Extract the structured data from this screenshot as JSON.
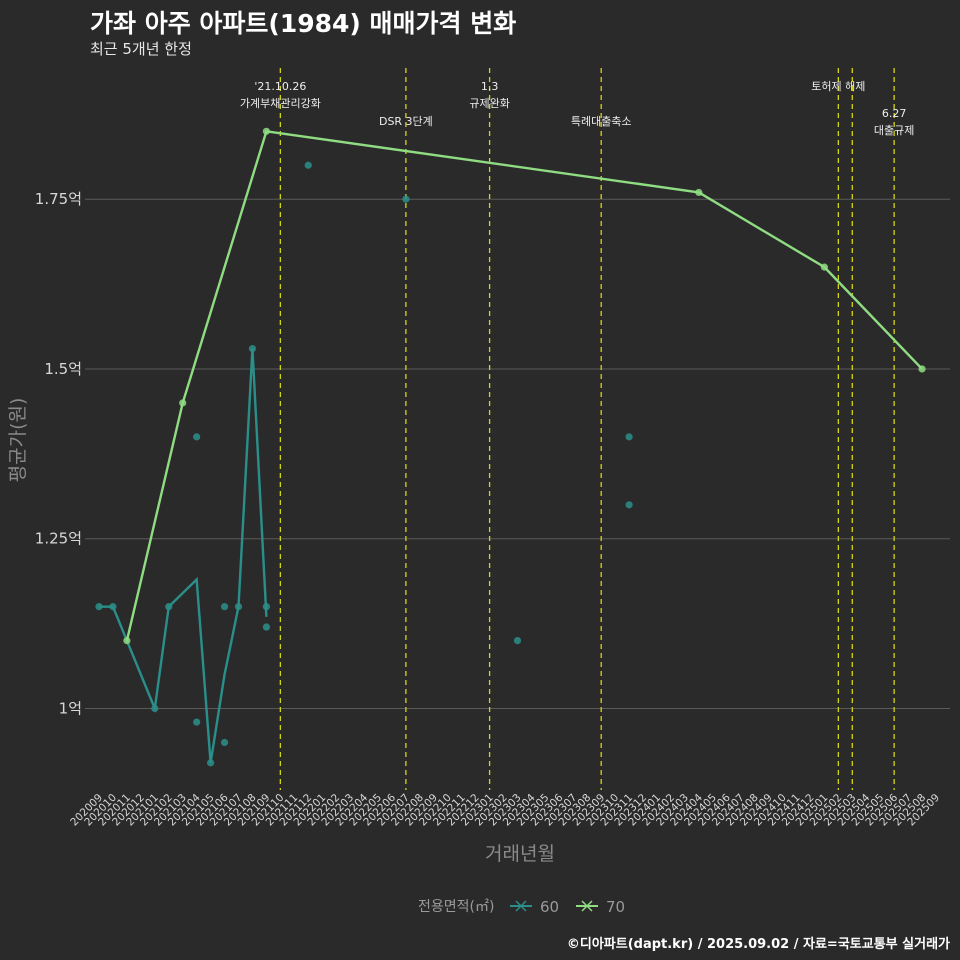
{
  "header": {
    "title": "가좌 아주 아파트(1984) 매매가격 변화",
    "subtitle": "최근 5개년 한정"
  },
  "caption": "©디아파트(dapt.kr) / 2025.09.02 / 자료=국토교통부 실거래가",
  "chart_data": {
    "type": "line",
    "xlabel": "거래년월",
    "ylabel": "평균가(원)",
    "ylim": [
      0.88,
      1.955
    ],
    "yticks": [
      1.0,
      1.25,
      1.5,
      1.75
    ],
    "ytick_labels": [
      "1억",
      "1.25억",
      "1.5억",
      "1.75억"
    ],
    "x_months": [
      "202009",
      "202010",
      "202011",
      "202012",
      "202101",
      "202102",
      "202103",
      "202104",
      "202105",
      "202106",
      "202107",
      "202108",
      "202109",
      "202110",
      "202111",
      "202112",
      "202201",
      "202202",
      "202203",
      "202204",
      "202205",
      "202206",
      "202207",
      "202208",
      "202209",
      "202210",
      "202211",
      "202212",
      "202301",
      "202302",
      "202303",
      "202304",
      "202305",
      "202306",
      "202307",
      "202308",
      "202309",
      "202310",
      "202311",
      "202312",
      "202401",
      "202402",
      "202403",
      "202404",
      "202405",
      "202406",
      "202407",
      "202408",
      "202409",
      "202410",
      "202411",
      "202412",
      "202501",
      "202502",
      "202503",
      "202504",
      "202505",
      "202506",
      "202507",
      "202508",
      "202509"
    ],
    "legend": {
      "title": "전용면적(㎡)",
      "position": "bottom"
    },
    "series": [
      {
        "name": "60",
        "color": "#2a8f8a",
        "line": [
          [
            "202009",
            1.15
          ],
          [
            "202010",
            1.15
          ],
          [
            "202101",
            1.0
          ],
          [
            "202102",
            1.15
          ],
          [
            "202104",
            1.19
          ],
          [
            "202105",
            0.92
          ],
          [
            "202106",
            1.05
          ],
          [
            "202107",
            1.15
          ],
          [
            "202108",
            1.53
          ],
          [
            "202109",
            1.135
          ]
        ],
        "points": [
          [
            "202009",
            1.15
          ],
          [
            "202010",
            1.15
          ],
          [
            "202101",
            1.0
          ],
          [
            "202102",
            1.15
          ],
          [
            "202104",
            1.4
          ],
          [
            "202104",
            0.98
          ],
          [
            "202105",
            0.92
          ],
          [
            "202106",
            1.15
          ],
          [
            "202106",
            0.95
          ],
          [
            "202107",
            1.15
          ],
          [
            "202108",
            1.53
          ],
          [
            "202109",
            1.15
          ],
          [
            "202109",
            1.12
          ],
          [
            "202112",
            1.8
          ],
          [
            "202207",
            1.75
          ],
          [
            "202303",
            1.1
          ],
          [
            "202311",
            1.4
          ],
          [
            "202311",
            1.3
          ]
        ]
      },
      {
        "name": "70",
        "color": "#8fdc82",
        "line": [
          [
            "202011",
            1.1
          ],
          [
            "202103",
            1.45
          ],
          [
            "202109",
            1.85
          ],
          [
            "202404",
            1.76
          ],
          [
            "202501",
            1.65
          ],
          [
            "202508",
            1.5
          ]
        ],
        "points": [
          [
            "202011",
            1.1
          ],
          [
            "202103",
            1.45
          ],
          [
            "202109",
            1.85
          ],
          [
            "202404",
            1.76
          ],
          [
            "202501",
            1.65
          ],
          [
            "202508",
            1.5
          ]
        ]
      }
    ],
    "events": [
      {
        "x": 13.0,
        "lines": [
          "'21.10.26",
          "가계부채관리강화"
        ],
        "level": 0
      },
      {
        "x": 22.0,
        "lines": [
          "DSR 3단계"
        ],
        "level": 1
      },
      {
        "x": 28.0,
        "lines": [
          "1.3",
          "규제완화"
        ],
        "level": 0
      },
      {
        "x": 36.0,
        "lines": [
          "특례대출축소"
        ],
        "level": 1
      },
      {
        "x": 53.0,
        "lines": [
          "토허제 해제"
        ],
        "level": 0
      },
      {
        "x": 54.0,
        "lines": [],
        "level": 0
      },
      {
        "x": 57.0,
        "lines": [
          "6.27",
          "대출규제"
        ],
        "level": 2
      }
    ]
  }
}
